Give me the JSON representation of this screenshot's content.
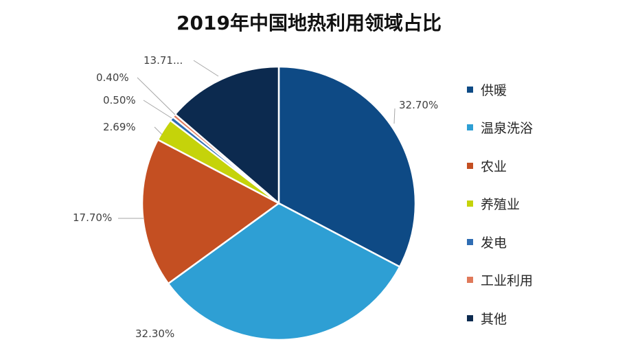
{
  "chart_data": {
    "type": "pie",
    "title": "2019年中国地热利用领域占比",
    "categories": [
      "供暖",
      "温泉洗浴",
      "农业",
      "养殖业",
      "发电",
      "工业利用",
      "其他"
    ],
    "values": [
      32.7,
      32.3,
      17.7,
      2.69,
      0.5,
      0.4,
      13.71
    ],
    "labels": [
      "32.70%",
      "32.30%",
      "17.70%",
      "2.69%",
      "0.50%",
      "0.40%",
      "13.71..."
    ],
    "colors": [
      "#0e4a85",
      "#2e9fd4",
      "#c44f22",
      "#c5d30a",
      "#2f6db3",
      "#e0795a",
      "#0c2a4f"
    ],
    "legend_position": "right"
  }
}
